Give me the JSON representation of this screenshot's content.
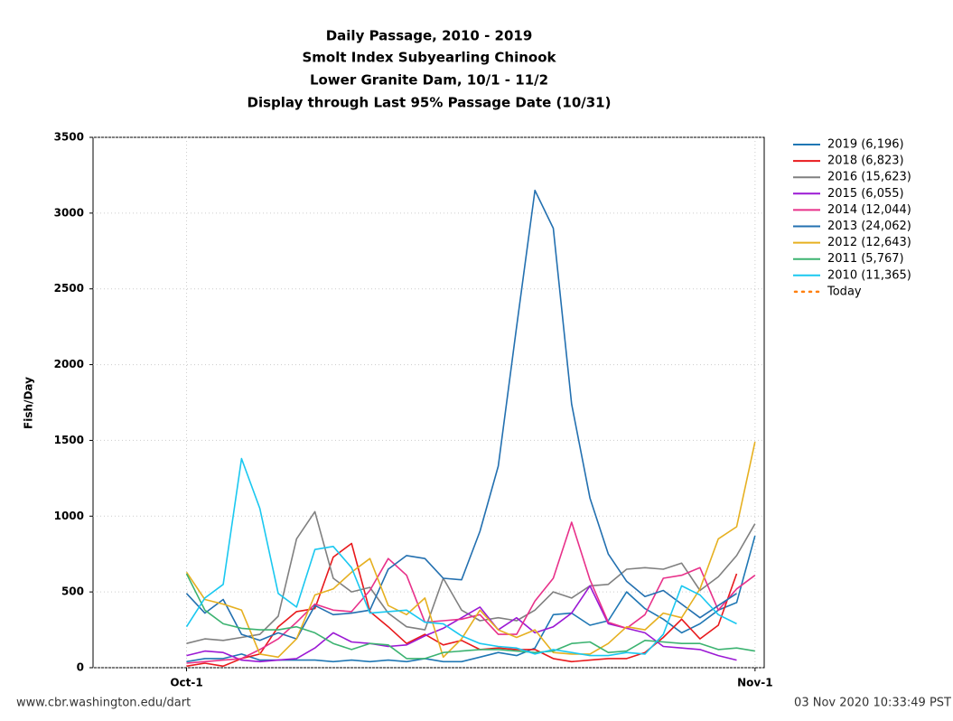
{
  "chart_data": {
    "type": "line",
    "title": [
      "Daily Passage, 2010 - 2019",
      "Smolt Index Subyearling Chinook",
      "Lower Granite Dam, 10/1 - 11/2",
      "Display through Last 95% Passage Date (10/31)"
    ],
    "y_label": "Fish/Day",
    "x": [
      0,
      1,
      2,
      3,
      4,
      5,
      6,
      7,
      8,
      9,
      10,
      11,
      12,
      13,
      14,
      15,
      16,
      17,
      18,
      19,
      20,
      21,
      22,
      23,
      24,
      25,
      26,
      27,
      28,
      29,
      30,
      31
    ],
    "xlim": [
      -5.1,
      31.5
    ],
    "xticks": [
      {
        "value": 0,
        "label": "Oct-1"
      },
      {
        "value": 31,
        "label": "Nov-1"
      }
    ],
    "ylim": [
      0,
      3500
    ],
    "yticks": [
      0,
      500,
      1000,
      1500,
      2000,
      2500,
      3000,
      3500
    ],
    "grid": true,
    "legend": "right",
    "series": [
      {
        "name": "2019 (6,196)",
        "color": "#1f77b4",
        "values": [
          40,
          60,
          60,
          90,
          50,
          50,
          50,
          50,
          40,
          50,
          40,
          50,
          40,
          60,
          40,
          40,
          70,
          100,
          80,
          130,
          350,
          360,
          280,
          310,
          500,
          390,
          320,
          230,
          290,
          380,
          430,
          870
        ]
      },
      {
        "name": "2018 (6,823)",
        "color": "#e8191c",
        "values": [
          10,
          30,
          10,
          60,
          90,
          270,
          370,
          390,
          730,
          820,
          370,
          270,
          160,
          220,
          150,
          180,
          120,
          130,
          120,
          120,
          60,
          40,
          50,
          60,
          60,
          100,
          200,
          320,
          190,
          280,
          620,
          null
        ]
      },
      {
        "name": "2016 (15,623)",
        "color": "#808080",
        "values": [
          160,
          190,
          180,
          200,
          220,
          340,
          850,
          1030,
          590,
          500,
          530,
          360,
          270,
          250,
          590,
          380,
          310,
          330,
          310,
          380,
          500,
          460,
          540,
          550,
          650,
          660,
          650,
          690,
          510,
          600,
          740,
          950
        ]
      },
      {
        "name": "2015 (6,055)",
        "color": "#9b19d4",
        "values": [
          80,
          110,
          100,
          50,
          40,
          50,
          60,
          130,
          230,
          170,
          160,
          140,
          150,
          210,
          260,
          330,
          400,
          250,
          330,
          230,
          270,
          360,
          540,
          290,
          260,
          230,
          140,
          130,
          120,
          80,
          50,
          null
        ]
      },
      {
        "name": "2014 (12,044)",
        "color": "#e8318a",
        "values": [
          30,
          40,
          50,
          60,
          120,
          190,
          300,
          420,
          380,
          370,
          510,
          720,
          610,
          300,
          310,
          320,
          350,
          220,
          220,
          440,
          590,
          960,
          580,
          300,
          260,
          350,
          590,
          610,
          660,
          380,
          520,
          610
        ]
      },
      {
        "name": "2013 (24,062)",
        "color": "#2370b0",
        "values": [
          490,
          360,
          450,
          220,
          180,
          230,
          190,
          410,
          350,
          360,
          380,
          650,
          740,
          720,
          590,
          580,
          900,
          1330,
          2250,
          3150,
          2900,
          1740,
          1120,
          750,
          570,
          470,
          510,
          420,
          330,
          410,
          490,
          null
        ]
      },
      {
        "name": "2012 (12,643)",
        "color": "#e6b020",
        "values": [
          630,
          450,
          420,
          380,
          90,
          70,
          190,
          480,
          520,
          630,
          720,
          410,
          350,
          460,
          70,
          190,
          380,
          250,
          200,
          250,
          100,
          90,
          90,
          160,
          270,
          250,
          360,
          330,
          520,
          850,
          930,
          1490
        ]
      },
      {
        "name": "2011 (5,767)",
        "color": "#3cb371",
        "values": [
          620,
          380,
          290,
          260,
          250,
          250,
          270,
          230,
          160,
          120,
          160,
          150,
          60,
          60,
          100,
          110,
          120,
          120,
          110,
          100,
          110,
          160,
          170,
          100,
          110,
          180,
          170,
          160,
          160,
          120,
          130,
          110
        ]
      },
      {
        "name": "2010 (11,365)",
        "color": "#1ac8f0",
        "values": [
          270,
          460,
          550,
          1380,
          1050,
          490,
          400,
          780,
          800,
          660,
          360,
          370,
          380,
          300,
          290,
          210,
          160,
          140,
          130,
          90,
          120,
          100,
          80,
          80,
          100,
          90,
          220,
          540,
          480,
          350,
          290,
          null
        ]
      }
    ],
    "today_legend": {
      "name": "Today",
      "color": "#ff7f0e"
    },
    "source": "www.cbr.washington.edu/dart",
    "timestamp": "03 Nov 2020 10:33:49 PST"
  }
}
